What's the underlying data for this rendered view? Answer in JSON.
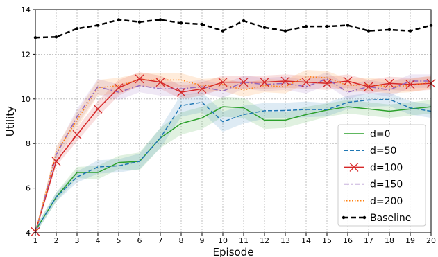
{
  "chart_data": {
    "type": "line",
    "xlabel": "Episode",
    "ylabel": "Utility",
    "xlim": [
      1,
      20
    ],
    "ylim": [
      4,
      14
    ],
    "x": [
      1,
      2,
      3,
      4,
      5,
      6,
      7,
      8,
      9,
      10,
      11,
      12,
      13,
      14,
      15,
      16,
      17,
      18,
      19,
      20
    ],
    "x_ticks": [
      1,
      2,
      3,
      4,
      5,
      6,
      7,
      8,
      9,
      10,
      11,
      12,
      13,
      14,
      15,
      16,
      17,
      18,
      19,
      20
    ],
    "y_ticks": [
      4,
      6,
      8,
      10,
      12,
      14
    ],
    "grid": true,
    "legend_position": "center-right",
    "series": [
      {
        "name": "d=0",
        "color": "#2ca02c",
        "style": "solid",
        "marker": "none",
        "values": [
          4.1,
          5.6,
          6.7,
          6.7,
          7.15,
          7.2,
          8.25,
          8.9,
          9.15,
          9.65,
          9.6,
          9.05,
          9.05,
          9.3,
          9.5,
          9.65,
          9.55,
          9.45,
          9.55,
          9.65
        ],
        "band": [
          0.15,
          0.2,
          0.25,
          0.3,
          0.3,
          0.4,
          0.45,
          0.5,
          0.5,
          0.45,
          0.45,
          0.4,
          0.35,
          0.35,
          0.3,
          0.3,
          0.3,
          0.3,
          0.3,
          0.3
        ]
      },
      {
        "name": "d=50",
        "color": "#1f77b4",
        "style": "dashed",
        "marker": "none",
        "values": [
          4.1,
          5.6,
          6.5,
          6.95,
          7.0,
          7.2,
          8.25,
          9.7,
          9.85,
          8.98,
          9.3,
          9.47,
          9.48,
          9.53,
          9.52,
          9.85,
          9.95,
          9.98,
          9.6,
          9.45
        ],
        "band": [
          0.15,
          0.2,
          0.25,
          0.3,
          0.3,
          0.35,
          0.45,
          0.5,
          0.45,
          0.45,
          0.4,
          0.35,
          0.35,
          0.35,
          0.3,
          0.3,
          0.3,
          0.3,
          0.3,
          0.3
        ]
      },
      {
        "name": "d=100",
        "color": "#d62728",
        "style": "solid",
        "marker": "x",
        "values": [
          4.05,
          7.2,
          8.4,
          9.55,
          10.5,
          10.9,
          10.75,
          10.3,
          10.45,
          10.75,
          10.75,
          10.75,
          10.8,
          10.75,
          10.7,
          10.8,
          10.55,
          10.7,
          10.65,
          10.7
        ],
        "band": [
          0.1,
          0.2,
          0.3,
          0.35,
          0.35,
          0.3,
          0.3,
          0.3,
          0.3,
          0.3,
          0.3,
          0.3,
          0.3,
          0.3,
          0.3,
          0.3,
          0.3,
          0.3,
          0.3,
          0.3
        ]
      },
      {
        "name": "d=150",
        "color": "#9467bd",
        "style": "dashdot",
        "marker": "none",
        "values": [
          4.0,
          7.5,
          9.2,
          10.55,
          10.3,
          10.6,
          10.45,
          10.45,
          10.55,
          10.35,
          10.75,
          10.65,
          10.7,
          10.55,
          10.9,
          10.3,
          10.55,
          10.4,
          10.8,
          10.8
        ],
        "band": [
          0.1,
          0.25,
          0.35,
          0.35,
          0.35,
          0.3,
          0.3,
          0.3,
          0.3,
          0.3,
          0.3,
          0.3,
          0.3,
          0.3,
          0.3,
          0.3,
          0.3,
          0.3,
          0.3,
          0.3
        ]
      },
      {
        "name": "d=200",
        "color": "#ff7f0e",
        "style": "dotted",
        "marker": "none",
        "values": [
          4.0,
          7.6,
          9.05,
          10.5,
          10.6,
          10.85,
          10.85,
          10.85,
          10.6,
          10.65,
          10.4,
          10.6,
          10.55,
          11.0,
          10.95,
          10.6,
          10.65,
          10.55,
          10.6,
          10.75
        ],
        "band": [
          0.1,
          0.25,
          0.35,
          0.35,
          0.35,
          0.3,
          0.3,
          0.3,
          0.3,
          0.3,
          0.3,
          0.3,
          0.3,
          0.3,
          0.3,
          0.3,
          0.3,
          0.3,
          0.3,
          0.3
        ]
      },
      {
        "name": "Baseline",
        "color": "#000000",
        "style": "dashed-bold",
        "marker": "dot",
        "values": [
          12.75,
          12.78,
          13.15,
          13.3,
          13.55,
          13.45,
          13.55,
          13.4,
          13.35,
          13.05,
          13.5,
          13.2,
          13.05,
          13.25,
          13.25,
          13.3,
          13.05,
          13.1,
          13.05,
          13.3
        ],
        "band": []
      }
    ]
  }
}
